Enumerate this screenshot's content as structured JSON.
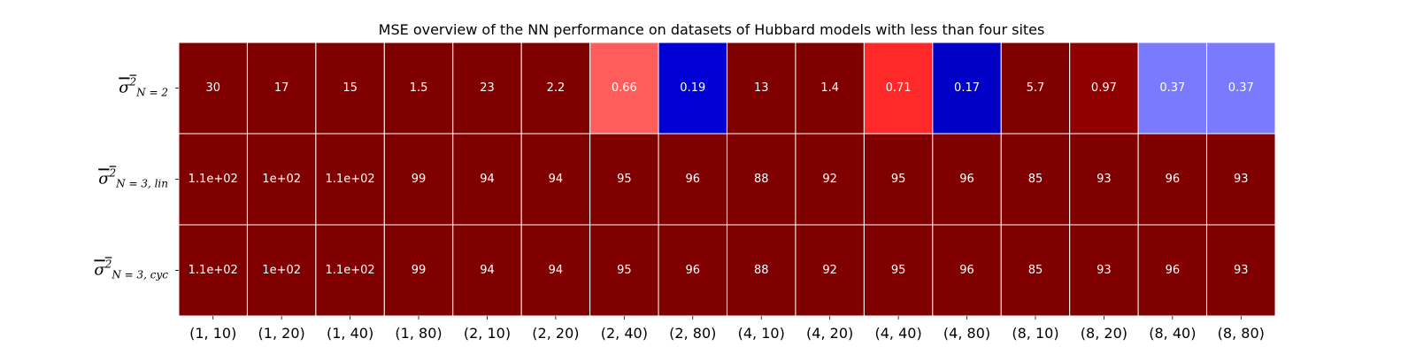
{
  "chart_data": {
    "type": "heatmap",
    "title": "MSE overview of the NN performance on datasets of Hubbard models with less than four sites",
    "x_categories": [
      "(1, 10)",
      "(1, 20)",
      "(1, 40)",
      "(1, 80)",
      "(2, 10)",
      "(2, 20)",
      "(2, 40)",
      "(2, 80)",
      "(4, 10)",
      "(4, 20)",
      "(4, 40)",
      "(4, 80)",
      "(8, 10)",
      "(8, 20)",
      "(8, 40)",
      "(8, 80)"
    ],
    "y_categories": [
      {
        "base": "σ",
        "power": "2",
        "sub": "N = 2"
      },
      {
        "base": "σ",
        "power": "2",
        "sub": "N = 3, lin"
      },
      {
        "base": "σ",
        "power": "2",
        "sub": "N = 3, cyc"
      }
    ],
    "rows": [
      {
        "values": [
          30,
          17,
          15,
          1.5,
          23,
          2.2,
          0.66,
          0.19,
          13,
          1.4,
          0.71,
          0.17,
          5.7,
          0.97,
          0.37,
          0.37
        ],
        "labels": [
          "30",
          "17",
          "15",
          "1.5",
          "23",
          "2.2",
          "0.66",
          "0.19",
          "13",
          "1.4",
          "0.71",
          "0.17",
          "5.7",
          "0.97",
          "0.37",
          "0.37"
        ]
      },
      {
        "values": [
          110,
          100,
          110,
          99,
          94,
          94,
          95,
          96,
          88,
          92,
          95,
          96,
          85,
          93,
          96,
          93
        ],
        "labels": [
          "1.1e+02",
          "1e+02",
          "1.1e+02",
          "99",
          "94",
          "94",
          "95",
          "96",
          "88",
          "92",
          "95",
          "96",
          "85",
          "93",
          "96",
          "93"
        ]
      },
      {
        "values": [
          110,
          100,
          110,
          99,
          94,
          94,
          95,
          96,
          88,
          92,
          95,
          96,
          85,
          93,
          96,
          93
        ],
        "labels": [
          "1.1e+02",
          "1e+02",
          "1.1e+02",
          "99",
          "94",
          "94",
          "95",
          "96",
          "88",
          "92",
          "95",
          "96",
          "85",
          "93",
          "96",
          "93"
        ]
      }
    ],
    "colormap": "seismic",
    "color_range": [
      0,
      1
    ],
    "colorbar": false,
    "cell_text_color": "#ffffff"
  }
}
